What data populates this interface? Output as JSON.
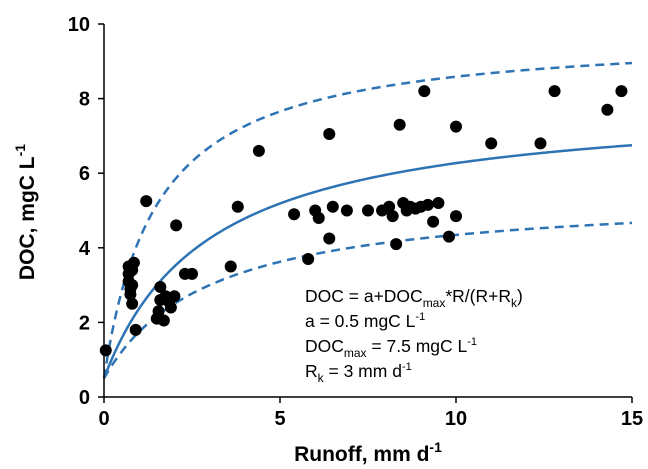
{
  "chart_data": {
    "type": "scatter",
    "xlabel": "Runoff, mm d",
    "xlabel_unit_exp": "-1",
    "ylabel": "DOC, mgC L",
    "ylabel_unit_exp": "-1",
    "xlim": [
      0,
      15
    ],
    "ylim": [
      0,
      10
    ],
    "x_ticks": [
      "0",
      "5",
      "10",
      "15"
    ],
    "y_ticks": [
      "0",
      "2",
      "4",
      "6",
      "8",
      "10"
    ],
    "grid": false,
    "legend": "none",
    "series": [
      {
        "type": "scatter",
        "color": "#000000",
        "points": [
          [
            0.05,
            1.25
          ],
          [
            0.7,
            3.5
          ],
          [
            0.7,
            3.3
          ],
          [
            0.7,
            3.1
          ],
          [
            0.75,
            2.9
          ],
          [
            0.75,
            2.75
          ],
          [
            0.8,
            2.5
          ],
          [
            0.8,
            3.4
          ],
          [
            0.85,
            3.6
          ],
          [
            0.8,
            3.0
          ],
          [
            0.9,
            1.8
          ],
          [
            1.2,
            5.25
          ],
          [
            1.5,
            2.1
          ],
          [
            1.55,
            2.3
          ],
          [
            1.6,
            2.6
          ],
          [
            1.6,
            2.95
          ],
          [
            1.7,
            2.05
          ],
          [
            1.75,
            2.7
          ],
          [
            1.85,
            2.55
          ],
          [
            1.9,
            2.4
          ],
          [
            2.0,
            2.7
          ],
          [
            2.05,
            4.6
          ],
          [
            2.3,
            3.3
          ],
          [
            2.5,
            3.3
          ],
          [
            3.6,
            3.5
          ],
          [
            3.8,
            5.1
          ],
          [
            4.4,
            6.6
          ],
          [
            5.4,
            4.9
          ],
          [
            5.8,
            3.7
          ],
          [
            6.0,
            5.0
          ],
          [
            6.1,
            4.8
          ],
          [
            6.4,
            4.25
          ],
          [
            6.4,
            7.05
          ],
          [
            6.5,
            5.1
          ],
          [
            6.9,
            5.0
          ],
          [
            7.5,
            5.0
          ],
          [
            7.9,
            5.0
          ],
          [
            8.1,
            5.1
          ],
          [
            8.2,
            4.85
          ],
          [
            8.3,
            4.1
          ],
          [
            8.4,
            7.3
          ],
          [
            8.5,
            5.2
          ],
          [
            8.6,
            5.0
          ],
          [
            8.7,
            5.1
          ],
          [
            8.85,
            5.05
          ],
          [
            9.0,
            5.1
          ],
          [
            9.1,
            8.2
          ],
          [
            9.2,
            5.15
          ],
          [
            9.35,
            4.7
          ],
          [
            9.5,
            5.2
          ],
          [
            9.8,
            4.3
          ],
          [
            10.0,
            4.85
          ],
          [
            10.0,
            7.25
          ],
          [
            11.0,
            6.8
          ],
          [
            12.4,
            6.8
          ],
          [
            12.8,
            8.2
          ],
          [
            14.3,
            7.7
          ],
          [
            14.7,
            8.2
          ]
        ]
      },
      {
        "type": "line",
        "style": "solid",
        "color": "#2e74b5",
        "a": 0.5,
        "docmax": 7.5,
        "rk": 3
      },
      {
        "type": "line",
        "style": "dashed",
        "color": "#2e74b5",
        "a": 0.5,
        "docmax": 9.3,
        "rk": 1.5
      },
      {
        "type": "line",
        "style": "dashed",
        "color": "#2e74b5",
        "a": 0.5,
        "docmax": 5.0,
        "rk": 3
      }
    ],
    "annotation": {
      "line1": {
        "prefix": "DOC =  a+DOC",
        "sub1": "max",
        "mid": "*R/(R+R",
        "sub2": "k",
        "suffix": ")"
      },
      "line2": {
        "text": "a = 0.5 mgC L",
        "sup": "-1"
      },
      "line3": {
        "prefix": "DOC",
        "sub": "max",
        "text": " = 7.5 mgC L",
        "sup": "-1"
      },
      "line4": {
        "prefix": "R",
        "sub": "k",
        "text": " = 3 mm d",
        "sup": "-1"
      }
    }
  }
}
